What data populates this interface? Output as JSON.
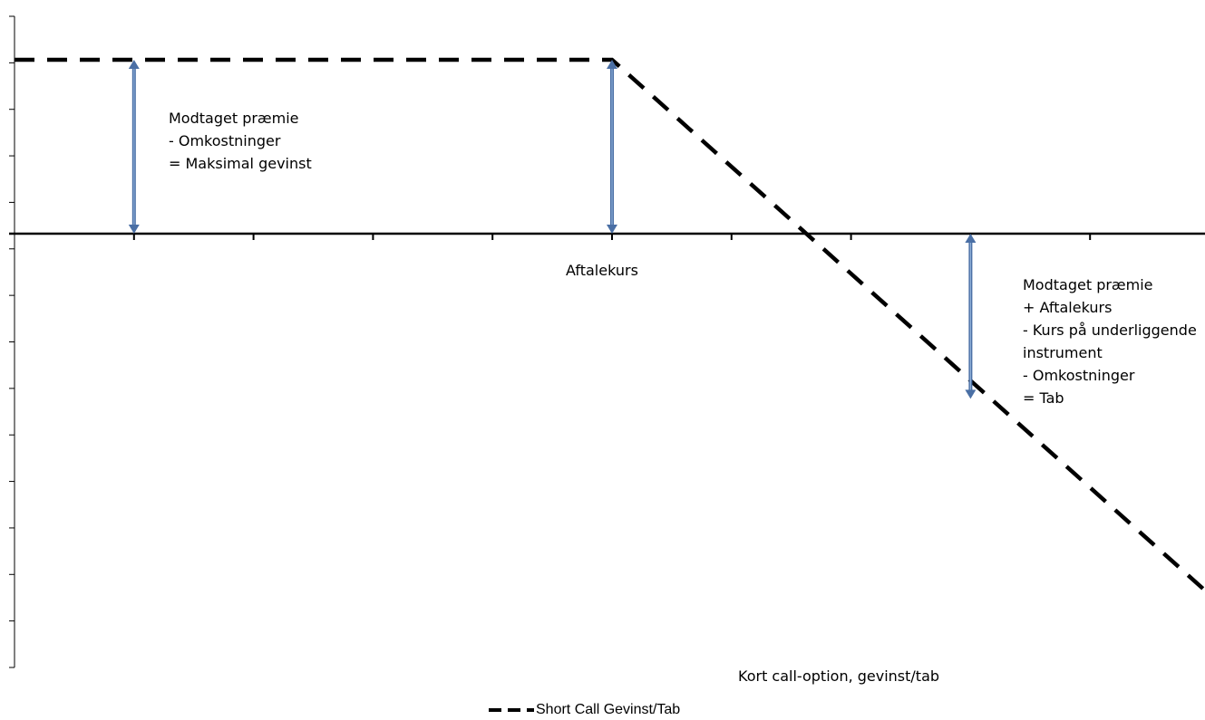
{
  "chart_data": {
    "type": "line",
    "title": "Kort call-option, gevinst/tab",
    "xlabel": "",
    "ylabel": "",
    "legend_position": "bottom",
    "grid": false,
    "x_category_count": 10,
    "y_tick_count": 15,
    "series": [
      {
        "name": "Short Call Gevinst/Tab",
        "style": "dashed",
        "color": "#000000",
        "x": [
          0,
          5,
          10
        ],
        "y": [
          4,
          4,
          -8.3
        ]
      }
    ],
    "annotations": [
      {
        "id": "max-gain",
        "lines": [
          "Modtaget præmie",
          "- Omkostninger",
          "= Maksimal gevinst"
        ]
      },
      {
        "id": "strike",
        "lines": [
          "Aftalekurs"
        ]
      },
      {
        "id": "loss",
        "lines": [
          "Modtaget præmie",
          "+ Aftalekurs",
          "- Kurs på underliggende",
          "instrument",
          "- Omkostninger",
          "= Tab"
        ]
      }
    ],
    "arrows": [
      {
        "x": 1,
        "from": 0,
        "to": 4
      },
      {
        "x": 5,
        "from": 0,
        "to": 4
      },
      {
        "x": 8,
        "from": 0,
        "to": -3.8
      }
    ],
    "colors": {
      "line": "#000000",
      "arrow": "#4a6fa5",
      "axis": "#000000"
    }
  }
}
